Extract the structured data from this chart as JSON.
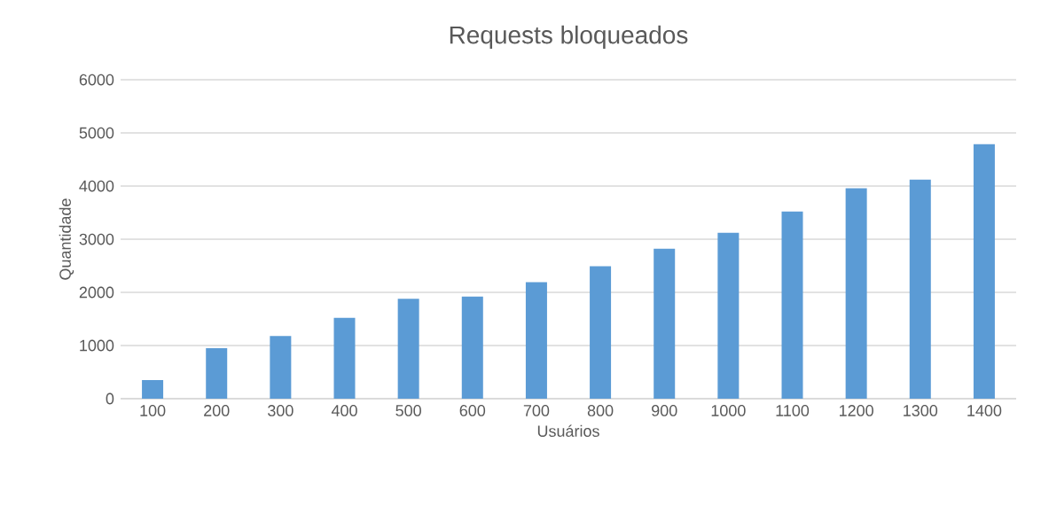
{
  "chart_data": {
    "type": "bar",
    "title": "Requests bloqueados",
    "xlabel": "Usuários",
    "ylabel": "Quantidade",
    "categories": [
      "100",
      "200",
      "300",
      "400",
      "500",
      "600",
      "700",
      "800",
      "900",
      "1000",
      "1100",
      "1200",
      "1300",
      "1400"
    ],
    "values": [
      350,
      950,
      1180,
      1520,
      1880,
      1920,
      2190,
      2490,
      2820,
      3120,
      3520,
      3960,
      4120,
      4790
    ],
    "color": "#5b9bd5",
    "ylim": [
      0,
      6000
    ],
    "yticks": [
      0,
      1000,
      2000,
      3000,
      4000,
      5000,
      6000
    ],
    "grid": "y"
  }
}
